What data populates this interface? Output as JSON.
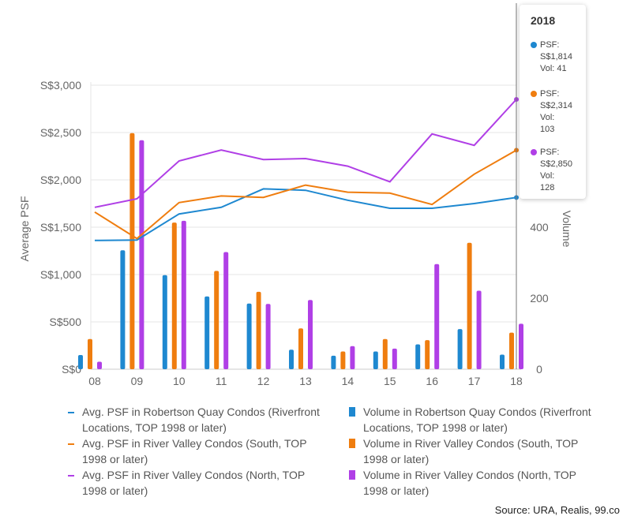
{
  "chart_data": {
    "type": "bar",
    "categories": [
      "08",
      "09",
      "10",
      "11",
      "12",
      "13",
      "14",
      "15",
      "16",
      "17",
      "18"
    ],
    "y_left": {
      "label": "Average PSF",
      "ticks": [
        "S$0",
        "S$500",
        "S$1,000",
        "S$1,500",
        "S$2,000",
        "S$2,500",
        "S$3,000"
      ],
      "range": [
        0,
        3000
      ]
    },
    "y_right": {
      "label": "Volume",
      "ticks": [
        "0",
        "200",
        "400"
      ],
      "range": [
        0,
        800
      ]
    },
    "line_series": [
      {
        "name": "Avg. PSF in Robertson Quay Condos (Riverfront Locations, TOP 1998 or later)",
        "color": "#1e88d0",
        "values": [
          1360,
          1365,
          1640,
          1710,
          1905,
          1890,
          1785,
          1700,
          1700,
          1750,
          1814
        ]
      },
      {
        "name": "Avg. PSF in River Valley Condos (South, TOP 1998 or later)",
        "color": "#ef7d0f",
        "values": [
          1660,
          1380,
          1760,
          1830,
          1815,
          1945,
          1870,
          1860,
          1740,
          2060,
          2314
        ]
      },
      {
        "name": "Avg. PSF in River Valley Condos (North, TOP 1998 or later)",
        "color": "#b03fe6",
        "values": [
          1710,
          1800,
          2200,
          2315,
          2215,
          2225,
          2145,
          1980,
          2485,
          2365,
          2850
        ]
      }
    ],
    "bar_series": [
      {
        "name": "Volume in Robertson Quay Condos (Riverfront Locations, TOP 1998 or later)",
        "color": "#1e88d0",
        "values": [
          40,
          335,
          265,
          205,
          185,
          55,
          38,
          50,
          70,
          113,
          41
        ]
      },
      {
        "name": "Volume in River Valley Condos (South, TOP 1998 or later)",
        "color": "#ef7d0f",
        "values": [
          85,
          665,
          413,
          277,
          218,
          115,
          50,
          85,
          82,
          356,
          103
        ]
      },
      {
        "name": "Volume in River Valley Condos (North, TOP 1998 or later)",
        "color": "#b03fe6",
        "values": [
          21,
          645,
          418,
          330,
          184,
          195,
          65,
          58,
          296,
          221,
          128
        ]
      }
    ],
    "highlight_index": 10
  },
  "tooltip": {
    "title": "2018",
    "entries": [
      {
        "color": "#1e88d0",
        "lines": [
          "PSF:",
          "S$1,814",
          "Vol: 41"
        ]
      },
      {
        "color": "#ef7d0f",
        "lines": [
          "PSF:",
          "S$2,314",
          "Vol:",
          "103"
        ]
      },
      {
        "color": "#b03fe6",
        "lines": [
          "PSF:",
          "S$2,850",
          "Vol:",
          "128"
        ]
      }
    ]
  },
  "legend": [
    {
      "kind": "line",
      "color": "#1e88d0",
      "lines": [
        "Avg. PSF in Robertson Quay Condos (Riverfront",
        "Locations, TOP 1998 or later)"
      ]
    },
    {
      "kind": "bar",
      "color": "#1e88d0",
      "lines": [
        "Volume in Robertson Quay Condos (Riverfront",
        "Locations, TOP 1998 or later)"
      ]
    },
    {
      "kind": "line",
      "color": "#ef7d0f",
      "lines": [
        "Avg. PSF in River Valley Condos (South, TOP",
        "1998 or later)"
      ]
    },
    {
      "kind": "bar",
      "color": "#ef7d0f",
      "lines": [
        "Volume in River Valley Condos (South, TOP",
        "1998 or later)"
      ]
    },
    {
      "kind": "line",
      "color": "#b03fe6",
      "lines": [
        "Avg. PSF in River Valley Condos (North, TOP",
        "1998 or later)"
      ]
    },
    {
      "kind": "bar",
      "color": "#b03fe6",
      "lines": [
        "Volume in River Valley Condos (North, TOP",
        "1998 or later)"
      ]
    }
  ],
  "source": "Source: URA, Realis, 99.co"
}
